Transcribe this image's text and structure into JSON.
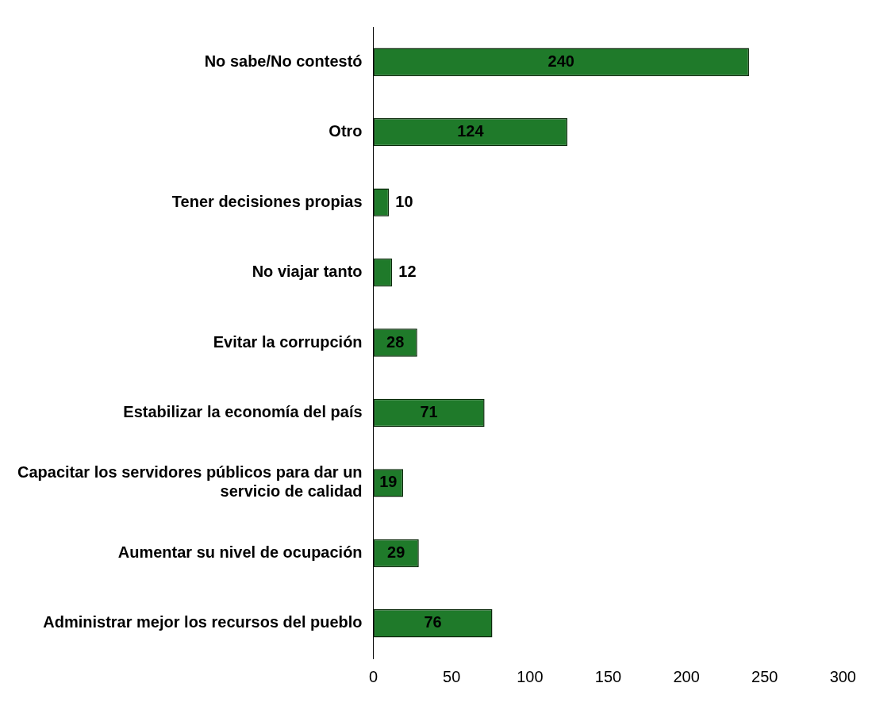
{
  "chart_data": {
    "type": "bar",
    "orientation": "horizontal",
    "categories": [
      "No sabe/No contestó",
      "Otro",
      "Tener decisiones propias",
      "No viajar tanto",
      "Evitar la corrupción",
      "Estabilizar la economía del país",
      "Capacitar los servidores públicos para dar un servicio de calidad",
      "Aumentar su nivel de ocupación",
      "Administrar mejor los recursos del pueblo"
    ],
    "values": [
      240,
      124,
      10,
      12,
      28,
      71,
      19,
      29,
      76
    ],
    "color": "#1f7a2a",
    "xlim": [
      0,
      300
    ],
    "xticks": [
      0,
      50,
      100,
      150,
      200,
      250,
      300
    ],
    "grid": false,
    "data_labels": true
  }
}
